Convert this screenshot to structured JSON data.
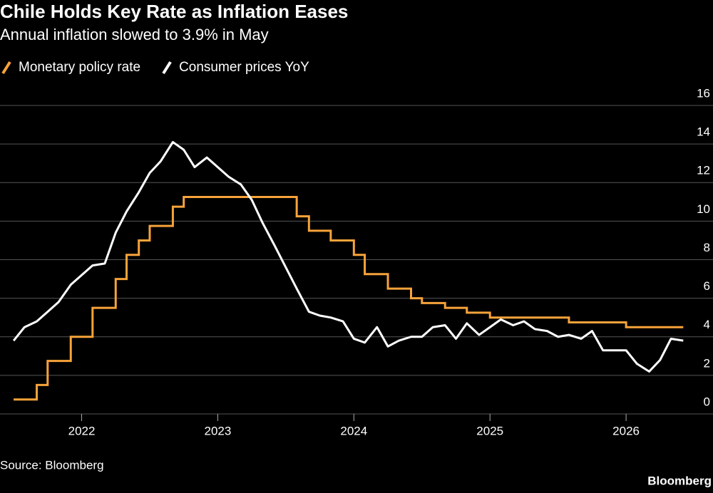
{
  "chart_data": {
    "type": "line",
    "title": "Chile Holds Key Rate as Inflation Eases",
    "subtitle": "Annual inflation slowed to 3.9% in May",
    "source": "Source: Bloomberg",
    "brand": "Bloomberg",
    "x": [
      2021.5,
      2021.58,
      2021.67,
      2021.75,
      2021.83,
      2021.92,
      2022.0,
      2022.08,
      2022.17,
      2022.25,
      2022.33,
      2022.42,
      2022.5,
      2022.58,
      2022.67,
      2022.75,
      2022.83,
      2022.92,
      2023.0,
      2023.08,
      2023.17,
      2023.25,
      2023.33,
      2023.42,
      2023.5,
      2023.58,
      2023.67,
      2023.75,
      2023.83,
      2023.92,
      2024.0,
      2024.08,
      2024.17,
      2024.25,
      2024.33,
      2024.42,
      2024.5,
      2024.58,
      2024.67,
      2024.75,
      2024.83,
      2024.92,
      2025.0,
      2025.08,
      2025.17,
      2025.25,
      2025.33,
      2025.42,
      2025.5,
      2025.58,
      2025.67,
      2025.75,
      2025.83,
      2025.92,
      2026.0,
      2026.08,
      2026.17,
      2026.25,
      2026.33,
      2026.42
    ],
    "series": [
      {
        "name": "Monetary policy rate",
        "color": "#f7a33a",
        "step": true,
        "values": [
          0.75,
          0.75,
          1.5,
          2.75,
          2.75,
          4.0,
          4.0,
          5.5,
          5.5,
          7.0,
          8.25,
          9.0,
          9.75,
          9.75,
          10.75,
          11.25,
          11.25,
          11.25,
          11.25,
          11.25,
          11.25,
          11.25,
          11.25,
          11.25,
          11.25,
          10.25,
          9.5,
          9.5,
          9.0,
          9.0,
          8.25,
          7.25,
          7.25,
          6.5,
          6.5,
          6.0,
          5.75,
          5.75,
          5.5,
          5.5,
          5.25,
          5.25,
          5.0,
          5.0,
          5.0,
          5.0,
          5.0,
          5.0,
          5.0,
          4.75,
          4.75,
          4.75,
          4.75,
          4.75,
          4.5,
          4.5,
          4.5,
          4.5,
          4.5,
          4.5
        ]
      },
      {
        "name": "Consumer prices YoY",
        "color": "#ffffff",
        "step": false,
        "values": [
          3.8,
          4.5,
          4.8,
          5.3,
          5.8,
          6.7,
          7.2,
          7.7,
          7.8,
          9.4,
          10.5,
          11.5,
          12.5,
          13.1,
          14.1,
          13.7,
          12.8,
          13.3,
          12.8,
          12.3,
          11.9,
          11.1,
          9.9,
          8.7,
          7.6,
          6.5,
          5.3,
          5.1,
          5.0,
          4.8,
          3.9,
          3.7,
          4.5,
          3.5,
          3.8,
          4.0,
          4.0,
          4.5,
          4.6,
          3.9,
          4.7,
          4.1,
          4.5,
          4.9,
          4.6,
          4.8,
          4.4,
          4.3,
          4.0,
          4.1,
          3.9,
          4.3,
          3.3,
          3.3,
          3.3,
          2.6,
          2.2,
          2.8,
          3.9,
          3.8
        ]
      }
    ],
    "xlim": [
      2021.4,
      2026.45
    ],
    "xticks": [
      2022,
      2023,
      2024,
      2025,
      2026
    ],
    "ylim": [
      0,
      16
    ],
    "yticks": [
      0,
      2,
      4,
      6,
      8,
      10,
      12,
      14,
      16
    ],
    "grid": true,
    "legend": "top-left"
  }
}
